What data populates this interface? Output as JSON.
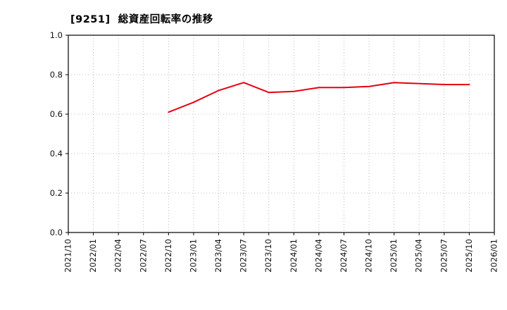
{
  "page": {
    "title": "[9251]  総資産回転率の推移"
  },
  "chart_data": {
    "type": "line",
    "title": "[9251]  総資産回転率の推移",
    "xlabel": "",
    "ylabel": "",
    "ylim": [
      0.0,
      1.0
    ],
    "grid": true,
    "legend_position": "none",
    "axis_color": "#000000",
    "grid_color": "#aaaaaa",
    "tick_label_color": "#111111",
    "x_tick_labels": [
      "2021/10",
      "2022/01",
      "2022/04",
      "2022/07",
      "2022/10",
      "2023/01",
      "2023/04",
      "2023/07",
      "2023/10",
      "2024/01",
      "2024/04",
      "2024/07",
      "2024/10",
      "2025/01",
      "2025/04",
      "2025/07",
      "2025/10",
      "2026/01"
    ],
    "y_tick_labels": [
      "0.0",
      "0.2",
      "0.4",
      "0.6",
      "0.8",
      "1.0"
    ],
    "y_tick_values": [
      0.0,
      0.2,
      0.4,
      0.6,
      0.8,
      1.0
    ],
    "series": [
      {
        "name": "総資産回転率",
        "color": "#e60012",
        "line_width": 2,
        "points": [
          [
            "2022/10",
            0.61
          ],
          [
            "2023/01",
            0.66
          ],
          [
            "2023/04",
            0.72
          ],
          [
            "2023/07",
            0.76
          ],
          [
            "2023/10",
            0.71
          ],
          [
            "2024/01",
            0.715
          ],
          [
            "2024/04",
            0.735
          ],
          [
            "2024/07",
            0.735
          ],
          [
            "2024/10",
            0.74
          ],
          [
            "2025/01",
            0.76
          ],
          [
            "2025/04",
            0.755
          ],
          [
            "2025/07",
            0.75
          ],
          [
            "2025/10",
            0.75
          ]
        ]
      }
    ]
  }
}
